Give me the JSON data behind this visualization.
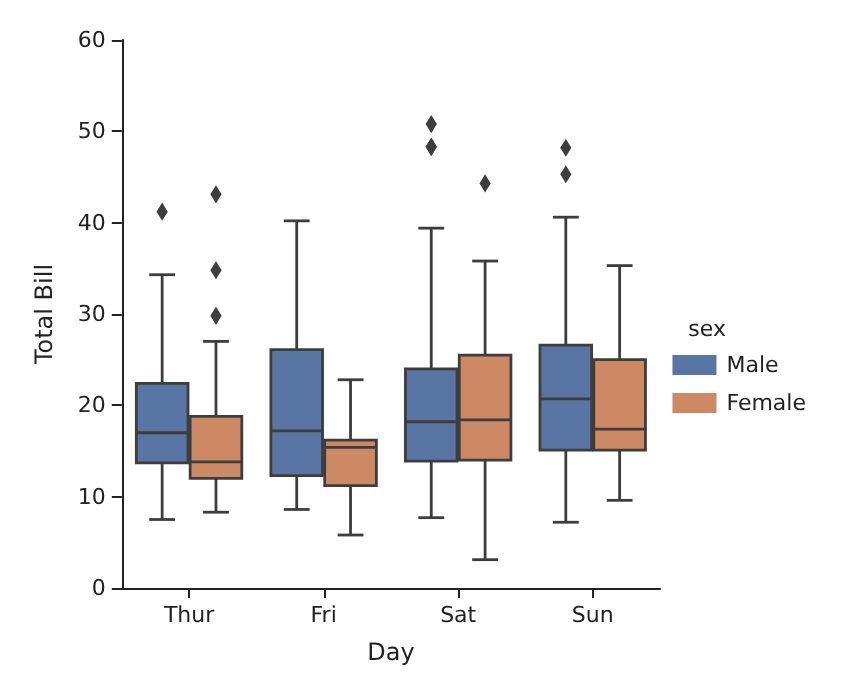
{
  "chart_data": {
    "type": "box",
    "xlabel": "Day",
    "ylabel": "Total Bill",
    "legend_title": "sex",
    "legend": "right",
    "grid": false,
    "marker": "diamond",
    "categories": [
      "Thur",
      "Fri",
      "Sat",
      "Sun"
    ],
    "ylim": [
      0,
      60
    ],
    "yticks": [
      0,
      10,
      20,
      30,
      40,
      50,
      60
    ],
    "series": [
      {
        "name": "Male",
        "color": "#5875a4",
        "boxes": [
          {
            "low": 7.5,
            "q1": 13.7,
            "median": 17.0,
            "q3": 22.4,
            "high": 34.3,
            "outliers": [
              41.2
            ]
          },
          {
            "low": 8.6,
            "q1": 12.3,
            "median": 17.2,
            "q3": 26.1,
            "high": 40.2
          },
          {
            "low": 7.7,
            "q1": 13.9,
            "median": 18.2,
            "q3": 24.0,
            "high": 39.4,
            "outliers": [
              48.3,
              48.3,
              50.8
            ]
          },
          {
            "low": 7.2,
            "q1": 15.1,
            "median": 20.7,
            "q3": 26.6,
            "high": 40.6,
            "outliers": [
              45.3,
              48.2
            ]
          }
        ]
      },
      {
        "name": "Female",
        "color": "#cc8963",
        "boxes": [
          {
            "low": 8.3,
            "q1": 12.0,
            "median": 13.8,
            "q3": 18.8,
            "high": 27.0,
            "outliers": [
              29.8,
              34.8,
              43.1
            ]
          },
          {
            "low": 5.8,
            "q1": 11.2,
            "median": 15.4,
            "q3": 16.2,
            "high": 22.8
          },
          {
            "low": 3.1,
            "q1": 14.0,
            "median": 18.4,
            "q3": 25.5,
            "high": 35.8,
            "outliers": [
              44.3
            ]
          },
          {
            "low": 9.6,
            "q1": 15.1,
            "median": 17.4,
            "q3": 25.0,
            "high": 35.3
          }
        ]
      }
    ]
  }
}
